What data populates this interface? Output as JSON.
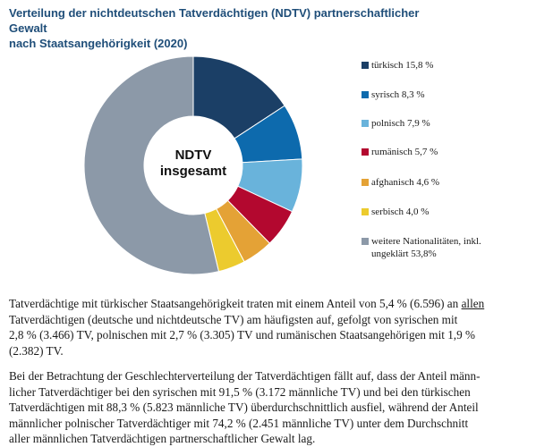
{
  "colors": {
    "title": "#1f4e79",
    "center_text": "#111111"
  },
  "chart_data": {
    "type": "pie",
    "variant": "donut",
    "title": [
      "Verteilung der nichtdeutschen Tatverdächtigen (NDTV) partnerschaftlicher Gewalt",
      "nach Staatsangehörigkeit (2020)"
    ],
    "center_label": [
      "NDTV",
      "insgesamt"
    ],
    "legend_position": "right",
    "slices": [
      {
        "label": "türkisch 15,8 %",
        "value": 15.8,
        "color": "#1b3f66"
      },
      {
        "label": "syrisch 8,3 %",
        "value": 8.3,
        "color": "#0d6aad"
      },
      {
        "label": "polnisch 7,9 %",
        "value": 7.9,
        "color": "#69b3db"
      },
      {
        "label": "rumänisch 5,7 %",
        "value": 5.7,
        "color": "#b3082f"
      },
      {
        "label": "afghanisch 4,6 %",
        "value": 4.6,
        "color": "#e4a236"
      },
      {
        "label": "serbisch 4,0 %",
        "value": 4.0,
        "color": "#eccb2e"
      },
      {
        "label": "weitere Nationalitäten, inkl. ungeklärt 53,8%",
        "label_lines": [
          "weitere Nationalitäten, inkl.",
          "ungeklärt 53,8%"
        ],
        "value": 53.8,
        "color": "#8c99a8"
      }
    ]
  },
  "paragraphs": [
    {
      "lines": [
        [
          "Tatverdächtige mit türkischer Staatsangehörigkeit traten mit einem Anteil von 5,4 % (6.596) an ",
          "allen",
          ""
        ],
        [
          "Tatverdächtigen (deutsche und nichtdeutsche TV) am häufigsten auf, gefolgt von syrischen mit"
        ],
        [
          "2,8 % (3.466) TV, polnischen mit 2,7 % (3.305) TV und rumänischen Staatsangehörigen mit 1,9 %"
        ],
        [
          "(2.382) TV."
        ]
      ]
    },
    {
      "lines": [
        [
          "Bei der Betrachtung der Geschlechterverteilung der Tatverdächtigen fällt auf, dass der Anteil männ-"
        ],
        [
          "licher Tatverdächtiger bei den syrischen mit 91,5 % (3.172 männliche TV) und bei den türkischen"
        ],
        [
          "Tatverdächtigen mit 88,3 % (5.823 männliche TV) überdurchschnittlich ausfiel, während der Anteil"
        ],
        [
          "männlicher polnischer Tatverdächtiger mit 74,2 % (2.451 männliche TV) unter dem Durchschnitt"
        ],
        [
          "aller männlichen Tatverdächtigen partnerschaftlicher Gewalt lag."
        ]
      ]
    }
  ]
}
